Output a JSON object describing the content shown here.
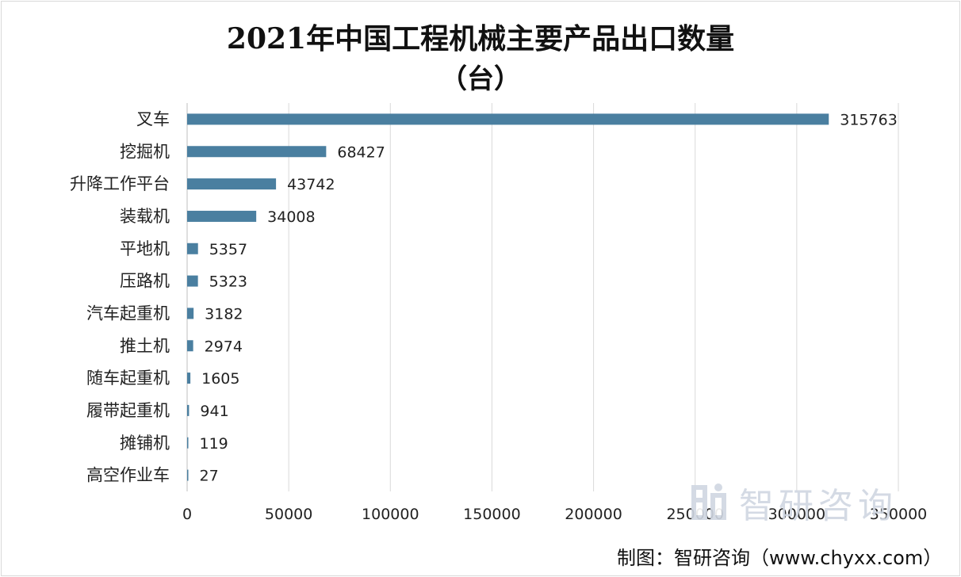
{
  "chart_data": {
    "type": "bar",
    "orientation": "horizontal",
    "title": "2021年中国工程机械主要产品出口数量",
    "subtitle": "（台）",
    "categories": [
      "叉车",
      "挖掘机",
      "升降工作平台",
      "装载机",
      "平地机",
      "压路机",
      "汽车起重机",
      "推土机",
      "随车起重机",
      "履带起重机",
      "摊铺机",
      "高空作业车"
    ],
    "values": [
      315763,
      68427,
      43742,
      34008,
      5357,
      5323,
      3182,
      2974,
      1605,
      941,
      119,
      27
    ],
    "xlim": [
      0,
      350000
    ],
    "xticks": [
      0,
      50000,
      100000,
      150000,
      200000,
      250000,
      300000,
      350000
    ],
    "grid": true,
    "bar_color": "#4a7fa0",
    "data_labels": true
  },
  "watermark": {
    "text": "智研咨询",
    "logo_icon": "zhiyan-logo-icon"
  },
  "source": "制图：智研咨询（www.chyxx.com）"
}
